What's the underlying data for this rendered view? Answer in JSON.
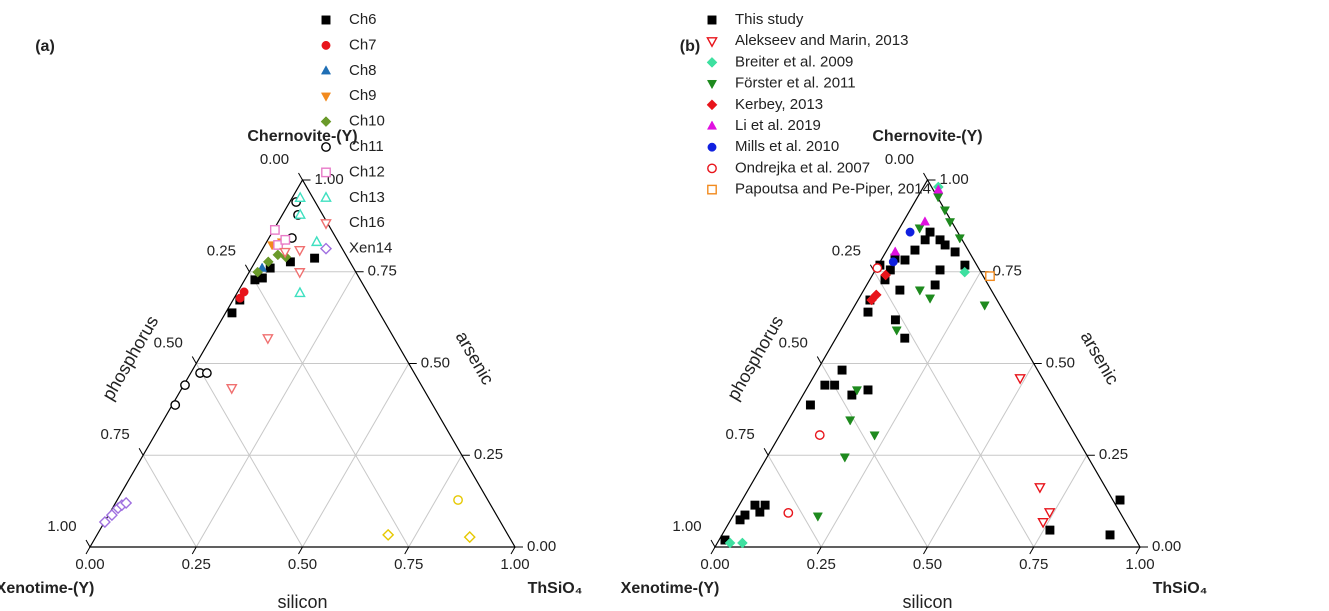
{
  "chart_data": [
    {
      "type": "ternary",
      "panel_label": "(a)",
      "top_label": "Chernovite-(Y)",
      "left_label": "Xenotime-(Y)",
      "right_label": "ThSiO₄",
      "bottom_axis_label": "silicon",
      "right_axis_label": "arsenic",
      "left_axis_label": "phosphorus",
      "ticks": [
        {
          "value": 0,
          "label": "0.00"
        },
        {
          "value": 0.25,
          "label": "0.25"
        },
        {
          "value": 0.5,
          "label": "0.50"
        },
        {
          "value": 0.75,
          "label": "0.75"
        },
        {
          "value": 1,
          "label": "1.00"
        }
      ],
      "series": [
        {
          "name": "Ch6",
          "color": "#000000",
          "marker": "square",
          "filled": true,
          "silicon": [
            0.015,
            0.016,
            0.024,
            0.044,
            0.083,
            0.135,
            0.039
          ],
          "arsenic": [
            0.638,
            0.673,
            0.728,
            0.76,
            0.777,
            0.787,
            0.733
          ]
        },
        {
          "name": "Ch7",
          "color": "#e8141b",
          "marker": "circle",
          "filled": true,
          "silicon": [
            0.014,
            0.015
          ],
          "arsenic": [
            0.678,
            0.695
          ]
        },
        {
          "name": "Ch8",
          "color": "#1f6fb5",
          "marker": "triangle",
          "filled": true,
          "silicon": [
            0.025
          ],
          "arsenic": [
            0.76
          ]
        },
        {
          "name": "Ch9",
          "color": "#f28a1e",
          "marker": "triangle-down",
          "filled": true,
          "silicon": [
            0.017,
            0.036
          ],
          "arsenic": [
            0.823,
            0.831
          ]
        },
        {
          "name": "Ch10",
          "color": "#6a9a2a",
          "marker": "diamond",
          "filled": true,
          "silicon": [
            0.02,
            0.031,
            0.044,
            0.066
          ],
          "arsenic": [
            0.749,
            0.777,
            0.796,
            0.79
          ]
        },
        {
          "name": "Ch11",
          "color": "#000000",
          "marker": "circle",
          "filled": false,
          "silicon": [
            0.015,
            0.037,
            0.054,
            0.022,
            0.038,
            0.003,
            0.007
          ],
          "arsenic": [
            0.94,
            0.905,
            0.842,
            0.474,
            0.474,
            0.441,
            0.387
          ]
        },
        {
          "name": "Ch12",
          "color": "#e87bc8",
          "marker": "square",
          "filled": false,
          "silicon": [
            0.003,
            0.031,
            0.041
          ],
          "arsenic": [
            0.864,
            0.823,
            0.837
          ]
        },
        {
          "name": "Ch13",
          "color": "#3ee0c0",
          "marker": "triangle",
          "filled": false,
          "silicon": [
            0.042,
            0.118,
            0.148,
            0.019
          ],
          "arsenic": [
            0.905,
            0.831,
            0.692,
            0.951
          ]
        },
        {
          "name": "Ch16",
          "color": "#f07070",
          "marker": "triangle-down",
          "filled": false,
          "silicon": [
            0.089,
            0.134,
            0.117,
            0.119,
            0.057
          ],
          "arsenic": [
            0.809,
            0.569,
            0.433,
            0.749,
            0.804
          ]
        },
        {
          "name": "Xen14",
          "color": "#a070e0",
          "marker": "diamond",
          "filled": false,
          "silicon": [
            0.001,
            0.008,
            0.013,
            0.018,
            0.025
          ],
          "arsenic": [
            0.068,
            0.087,
            0.106,
            0.114,
            0.12
          ]
        },
        {
          "name": null,
          "color": "#e6c800",
          "marker": "circle",
          "filled": false,
          "silicon": [
            0.802
          ],
          "arsenic": [
            0.128
          ]
        },
        {
          "name": null,
          "color": "#e6c800",
          "marker": "diamond",
          "filled": false,
          "silicon": [
            0.88,
            0.685
          ],
          "arsenic": [
            0.027,
            0.033
          ]
        }
      ]
    },
    {
      "type": "ternary",
      "panel_label": "(b)",
      "top_label": "Chernovite-(Y)",
      "left_label": "Xenotime-(Y)",
      "right_label": "ThSiO₄",
      "bottom_axis_label": "silicon",
      "right_axis_label": "arsenic",
      "left_axis_label": "phosphorus",
      "ticks": [
        {
          "value": 0,
          "label": "0.00"
        },
        {
          "value": 0.25,
          "label": "0.25"
        },
        {
          "value": 0.5,
          "label": "0.50"
        },
        {
          "value": 0.75,
          "label": "0.75"
        },
        {
          "value": 1,
          "label": "1.00"
        }
      ],
      "series": [
        {
          "name": "This study",
          "color": "#000000",
          "marker": "square",
          "filled": true,
          "silicon": [
            0.077,
            0.111,
            0.13,
            0.076,
            0.066,
            0.056,
            0.03,
            0.035,
            0.004,
            0.036,
            0.085,
            0.163,
            0.204,
            0.152,
            0.161,
            0.028,
            0.04,
            0.115,
            0.162,
            0.058,
            0.061,
            0.038,
            0.115,
            0.146,
            0.031,
            0.022,
            0.027,
            0.037,
            0.061,
            0.058,
            0.014,
            0.889,
            0.913,
            0.765
          ],
          "arsenic": [
            0.858,
            0.837,
            0.823,
            0.837,
            0.809,
            0.782,
            0.787,
            0.755,
            0.768,
            0.728,
            0.7,
            0.804,
            0.768,
            0.755,
            0.714,
            0.673,
            0.64,
            0.619,
            0.569,
            0.482,
            0.441,
            0.441,
            0.414,
            0.428,
            0.387,
            0.074,
            0.087,
            0.114,
            0.114,
            0.095,
            0.019,
            0.128,
            0.033,
            0.046
          ]
        },
        {
          "name": "Alekseev and Marin, 2013",
          "color": "#e8141b",
          "marker": "triangle-down",
          "filled": false,
          "silicon": [
            0.488,
            0.683,
            0.74,
            0.738
          ],
          "arsenic": [
            0.46,
            0.163,
            0.095,
            0.068
          ]
        },
        {
          "name": "Breiter et al. 2009",
          "color": "#3ee0a0",
          "marker": "diamond",
          "filled": true,
          "silicon": [
            0.03,
            0.059,
            0.213,
            0.035
          ],
          "arsenic": [
            0.011,
            0.011,
            0.749,
            0.981
          ]
        },
        {
          "name": "Förster et al. 2011",
          "color": "#1e8a1e",
          "marker": "triangle-down",
          "filled": true,
          "silicon": [
            0.305,
            0.132,
            0.167,
            0.132,
            0.12,
            0.223,
            0.183,
            0.2,
            0.145,
            0.155,
            0.082,
            0.047,
            0.11,
            0.048
          ],
          "arsenic": [
            0.659,
            0.7,
            0.678,
            0.591,
            0.428,
            0.305,
            0.245,
            0.084,
            0.346,
            0.842,
            0.918,
            0.869,
            0.886,
            0.954
          ]
        },
        {
          "name": "Kerbey, 2013",
          "color": "#e8141b",
          "marker": "diamond",
          "filled": true,
          "silicon": [
            0.036,
            0.032,
            0.031
          ],
          "arsenic": [
            0.687,
            0.673,
            0.741
          ]
        },
        {
          "name": "Li et al. 2019",
          "color": "#e010e0",
          "marker": "triangle",
          "filled": true,
          "silicon": [
            0.039,
            0.051,
            0.022
          ],
          "arsenic": [
            0.973,
            0.886,
            0.804
          ]
        },
        {
          "name": "Mills et al. 2010",
          "color": "#1020e0",
          "marker": "circle",
          "filled": true,
          "silicon": [
            0.03,
            0.031
          ],
          "arsenic": [
            0.858,
            0.777
          ]
        },
        {
          "name": "Ondrejka et al. 2007",
          "color": "#e8141b",
          "marker": "circle",
          "filled": false,
          "silicon": [
            0.094,
            0.126,
            0.002
          ],
          "arsenic": [
            0.305,
            0.093,
            0.76
          ]
        },
        {
          "name": "Papoutsa and Pe-Piper, 2014",
          "color": "#f28a1e",
          "marker": "square",
          "filled": false,
          "silicon": [
            0.278
          ],
          "arsenic": [
            0.738
          ]
        }
      ]
    }
  ]
}
